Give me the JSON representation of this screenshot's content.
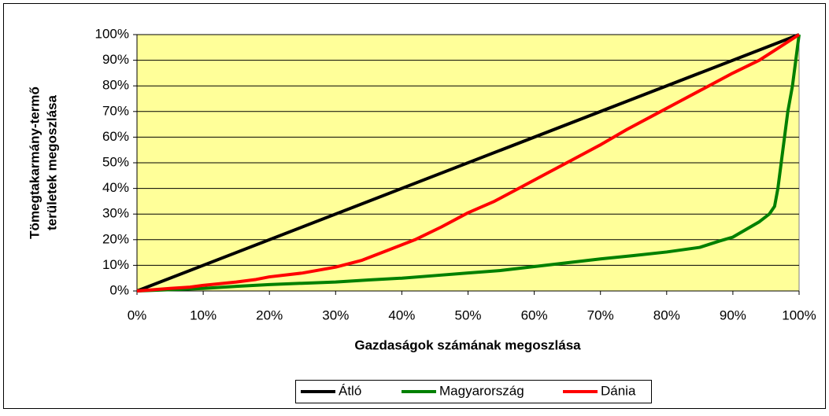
{
  "chart_data": {
    "type": "line",
    "x_label": "Gazdaságok számának megoszlása",
    "y_label": [
      "Tömegtakarmány-termő",
      "területek megoszlása"
    ],
    "xlim": [
      0,
      100
    ],
    "ylim": [
      0,
      100
    ],
    "xticks": [
      {
        "value": 0,
        "label": "0%"
      },
      {
        "value": 10,
        "label": "10%"
      },
      {
        "value": 20,
        "label": "20%"
      },
      {
        "value": 30,
        "label": "30%"
      },
      {
        "value": 40,
        "label": "40%"
      },
      {
        "value": 50,
        "label": "50%"
      },
      {
        "value": 60,
        "label": "60%"
      },
      {
        "value": 70,
        "label": "70%"
      },
      {
        "value": 80,
        "label": "80%"
      },
      {
        "value": 90,
        "label": "90%"
      },
      {
        "value": 100,
        "label": "100%"
      }
    ],
    "yticks": [
      {
        "value": 0,
        "label": "0%"
      },
      {
        "value": 10,
        "label": "10%"
      },
      {
        "value": 20,
        "label": "20%"
      },
      {
        "value": 30,
        "label": "30%"
      },
      {
        "value": 40,
        "label": "40%"
      },
      {
        "value": 50,
        "label": "50%"
      },
      {
        "value": 60,
        "label": "60%"
      },
      {
        "value": 70,
        "label": "70%"
      },
      {
        "value": 80,
        "label": "80%"
      },
      {
        "value": 90,
        "label": "90%"
      },
      {
        "value": 100,
        "label": "100%"
      }
    ],
    "grid": true,
    "legend": "bottom",
    "plot_background": "#ffff99",
    "series": [
      {
        "name": "Átló",
        "color": "#000000",
        "x": [
          0,
          100
        ],
        "values": [
          0,
          100
        ]
      },
      {
        "name": "Magyarország",
        "color": "#008000",
        "x": [
          0,
          5,
          10,
          15,
          20,
          25,
          30,
          35,
          40,
          45,
          50,
          55,
          60,
          65,
          70,
          75,
          80,
          85,
          88,
          90,
          92,
          94,
          95.5,
          96.3,
          96.8,
          97.3,
          97.8,
          98.3,
          99,
          99.5,
          100
        ],
        "values": [
          0,
          0.5,
          1,
          1.8,
          2.5,
          3,
          3.5,
          4.3,
          5,
          6,
          7,
          8,
          9.5,
          11,
          12.5,
          13.8,
          15.2,
          17,
          19.5,
          21,
          24,
          27,
          30,
          33,
          40,
          50,
          60,
          70,
          80,
          90,
          100
        ]
      },
      {
        "name": "Dánia",
        "color": "#ff0000",
        "x": [
          0,
          5,
          8,
          10,
          15,
          18,
          20,
          25,
          30,
          34,
          38,
          42,
          46,
          50,
          54,
          58,
          62,
          66,
          70,
          74,
          78,
          82,
          86,
          90,
          94,
          97,
          100
        ],
        "values": [
          0,
          1,
          1.5,
          2.2,
          3.5,
          4.5,
          5.5,
          7,
          9.3,
          12,
          16,
          20,
          25,
          30.5,
          35,
          40.5,
          46,
          51.5,
          57,
          63,
          68.5,
          74,
          79.5,
          85,
          90,
          95,
          100
        ]
      }
    ]
  }
}
